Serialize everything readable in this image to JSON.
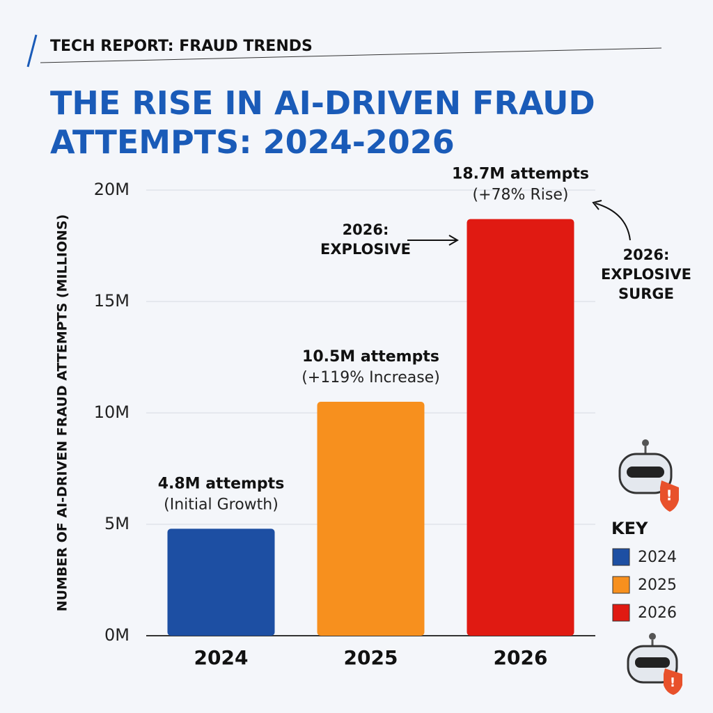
{
  "chart_data": {
    "type": "bar",
    "header": "TECH REPORT: FRAUD TRENDS",
    "title": "THE RISE IN AI-DRIVEN FRAUD ATTEMPTS: 2024-2026",
    "y_label": "NUMBER OF AI-DRIVEN FRAUD ATTEMPTS (MILLIONS)",
    "categories": [
      "2024",
      "2025",
      "2026"
    ],
    "values": [
      4.8,
      10.5,
      18.7
    ],
    "value_labels": [
      "4.8M attempts",
      "10.5M attempts",
      "18.7M attempts"
    ],
    "value_notes": [
      "(Initial Growth)",
      "(+119% Increase)",
      "(+78% Rise)"
    ],
    "colors": [
      "#1d4fa3",
      "#f7901e",
      "#e01a12"
    ],
    "ylim": [
      0,
      20
    ],
    "yticks": [
      {
        "value": 0,
        "label": "0M"
      },
      {
        "value": 5,
        "label": "5M"
      },
      {
        "value": 10,
        "label": "10M"
      },
      {
        "value": 15,
        "label": "15M"
      },
      {
        "value": 20,
        "label": "20M"
      }
    ],
    "grid": true,
    "legend_title": "KEY",
    "annotations": [
      "2026: EXPLOSIVE",
      "2026: EXPLOSIVE SURGE"
    ]
  }
}
